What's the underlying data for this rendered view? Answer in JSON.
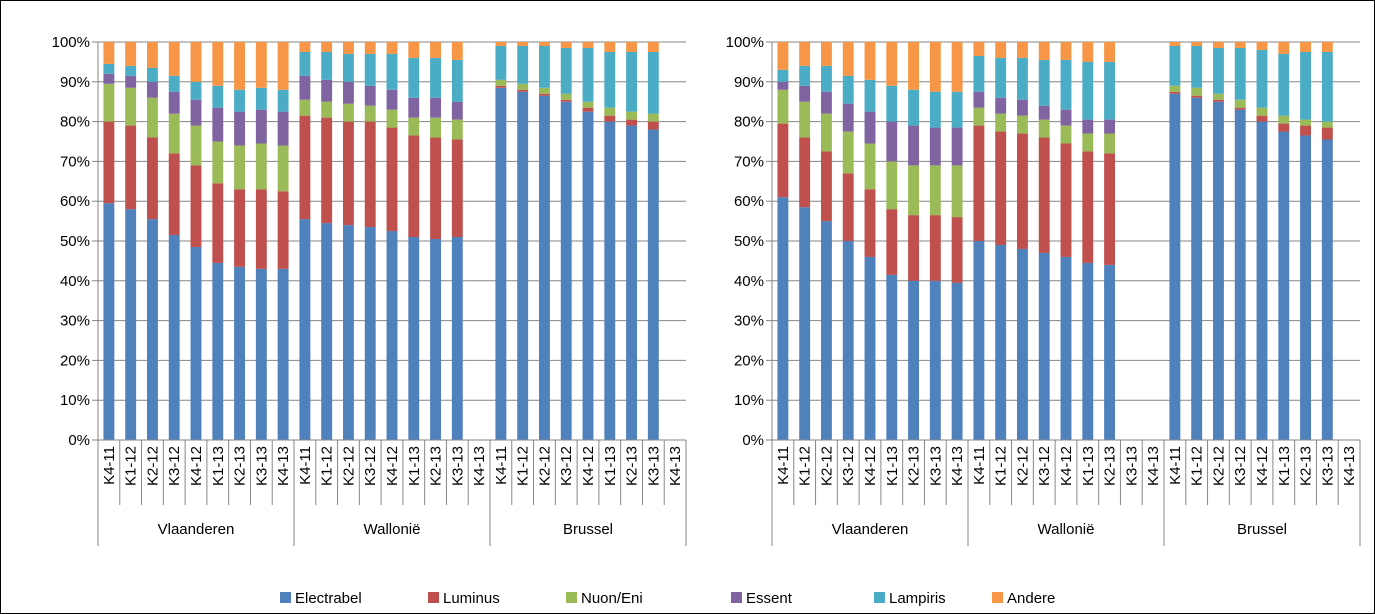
{
  "legend": [
    {
      "name": "Electrabel",
      "color": "#4F81BD"
    },
    {
      "name": "Luminus",
      "color": "#C0504D"
    },
    {
      "name": "Nuon/Eni",
      "color": "#9BBB59"
    },
    {
      "name": "Essent",
      "color": "#8064A2"
    },
    {
      "name": "Lampiris",
      "color": "#4BACC6"
    },
    {
      "name": "Andere",
      "color": "#F79646"
    }
  ],
  "chart_data": [
    {
      "type": "bar",
      "stacked": true,
      "grid": true,
      "ylim": [
        0,
        100
      ],
      "yticks": [
        "0%",
        "10%",
        "20%",
        "30%",
        "40%",
        "50%",
        "60%",
        "70%",
        "80%",
        "90%",
        "100%"
      ],
      "groups": [
        {
          "name": "Vlaanderen",
          "categories": [
            "K4-11",
            "K1-12",
            "K2-12",
            "K3-12",
            "K4-12",
            "K1-13",
            "K2-13",
            "K3-13",
            "K4-13"
          ],
          "series": [
            {
              "name": "Electrabel",
              "values": [
                59.5,
                58,
                55.5,
                51.5,
                48.5,
                44.5,
                43.5,
                43,
                43
              ]
            },
            {
              "name": "Luminus",
              "values": [
                20.5,
                21,
                20.5,
                20.5,
                20.5,
                20,
                19.5,
                20,
                19.5
              ]
            },
            {
              "name": "Nuon/Eni",
              "values": [
                9.5,
                9.5,
                10,
                10,
                10,
                10.5,
                11,
                11.5,
                11.5
              ]
            },
            {
              "name": "Essent",
              "values": [
                2.5,
                3,
                4,
                5.5,
                6.5,
                8.5,
                8.5,
                8.5,
                8.5
              ]
            },
            {
              "name": "Lampiris",
              "values": [
                2.5,
                2.5,
                3.5,
                4,
                4.5,
                5.5,
                5.5,
                5.5,
                5.5
              ]
            },
            {
              "name": "Andere",
              "values": [
                5.5,
                6,
                6.5,
                8.5,
                10,
                11,
                12,
                11.5,
                12
              ]
            }
          ]
        },
        {
          "name": "Wallonië",
          "categories": [
            "K4-11",
            "K1-12",
            "K2-12",
            "K3-12",
            "K4-12",
            "K1-13",
            "K2-13",
            "K3-13",
            "K4-13"
          ],
          "series": [
            {
              "name": "Electrabel",
              "values": [
                55.5,
                54.5,
                54,
                53.5,
                52.5,
                51,
                50.5,
                51,
                0
              ]
            },
            {
              "name": "Luminus",
              "values": [
                26,
                26.5,
                26,
                26.5,
                26,
                25.5,
                25.5,
                24.5,
                0
              ]
            },
            {
              "name": "Nuon/Eni",
              "values": [
                4,
                4,
                4.5,
                4,
                4.5,
                4.5,
                5,
                5,
                0
              ]
            },
            {
              "name": "Essent",
              "values": [
                6,
                5.5,
                5.5,
                5,
                5,
                5,
                5,
                4.5,
                0
              ]
            },
            {
              "name": "Lampiris",
              "values": [
                6,
                7,
                7,
                8,
                9,
                10,
                10,
                10.5,
                0
              ]
            },
            {
              "name": "Andere",
              "values": [
                2.5,
                2.5,
                3,
                3,
                3,
                4,
                4,
                4.5,
                0
              ]
            }
          ]
        },
        {
          "name": "Brussel",
          "categories": [
            "K4-11",
            "K1-12",
            "K2-12",
            "K3-12",
            "K4-12",
            "K1-13",
            "K2-13",
            "K3-13",
            "K4-13"
          ],
          "series": [
            {
              "name": "Electrabel",
              "values": [
                88.5,
                87.5,
                86.5,
                85,
                82.5,
                80,
                79,
                78,
                0
              ]
            },
            {
              "name": "Luminus",
              "values": [
                0.5,
                0.5,
                0.5,
                0.5,
                1,
                1.5,
                1.5,
                2,
                0
              ]
            },
            {
              "name": "Nuon/Eni",
              "values": [
                1.5,
                1.5,
                1.5,
                1.5,
                1.5,
                2,
                2,
                2,
                0
              ]
            },
            {
              "name": "Essent",
              "values": [
                0,
                0,
                0,
                0,
                0,
                0,
                0,
                0,
                0
              ]
            },
            {
              "name": "Lampiris",
              "values": [
                8.5,
                9.5,
                10.5,
                11.5,
                13.5,
                14,
                15,
                15.5,
                0
              ]
            },
            {
              "name": "Andere",
              "values": [
                1,
                1,
                1,
                1.5,
                1.5,
                2.5,
                2.5,
                2.5,
                0
              ]
            }
          ]
        }
      ]
    },
    {
      "type": "bar",
      "stacked": true,
      "grid": true,
      "ylim": [
        0,
        100
      ],
      "yticks": [
        "0%",
        "10%",
        "20%",
        "30%",
        "40%",
        "50%",
        "60%",
        "70%",
        "80%",
        "90%",
        "100%"
      ],
      "groups": [
        {
          "name": "Vlaanderen",
          "categories": [
            "K4-11",
            "K1-12",
            "K2-12",
            "K3-12",
            "K4-12",
            "K1-13",
            "K2-13",
            "K3-13",
            "K4-13"
          ],
          "series": [
            {
              "name": "Electrabel",
              "values": [
                61,
                58.5,
                55,
                50,
                46,
                41.5,
                40,
                40,
                39.5
              ]
            },
            {
              "name": "Luminus",
              "values": [
                18.5,
                17.5,
                17.5,
                17,
                17,
                16.5,
                16.5,
                16.5,
                16.5
              ]
            },
            {
              "name": "Nuon/Eni",
              "values": [
                8.5,
                9,
                9.5,
                10.5,
                11.5,
                12,
                12.5,
                12.5,
                13
              ]
            },
            {
              "name": "Essent",
              "values": [
                2,
                4,
                5.5,
                7,
                8,
                10,
                10,
                9.5,
                9.5
              ]
            },
            {
              "name": "Lampiris",
              "values": [
                3,
                5,
                6.5,
                7,
                8,
                9,
                9,
                9,
                9
              ]
            },
            {
              "name": "Andere",
              "values": [
                7,
                6,
                6,
                8.5,
                9.5,
                11,
                12,
                12.5,
                12.5
              ]
            }
          ]
        },
        {
          "name": "Wallonië",
          "categories": [
            "K4-11",
            "K1-12",
            "K2-12",
            "K3-12",
            "K4-12",
            "K1-13",
            "K2-13",
            "K3-13",
            "K4-13"
          ],
          "series": [
            {
              "name": "Electrabel",
              "values": [
                50,
                49,
                48,
                47,
                46,
                44.5,
                44,
                0,
                0
              ]
            },
            {
              "name": "Luminus",
              "values": [
                29,
                28.5,
                29,
                29,
                28.5,
                28,
                28,
                0,
                0
              ]
            },
            {
              "name": "Nuon/Eni",
              "values": [
                4.5,
                4.5,
                4.5,
                4.5,
                4.5,
                4.5,
                5,
                0,
                0
              ]
            },
            {
              "name": "Essent",
              "values": [
                4,
                4,
                4,
                3.5,
                4,
                3.5,
                3.5,
                0,
                0
              ]
            },
            {
              "name": "Lampiris",
              "values": [
                9,
                10,
                10.5,
                11.5,
                12.5,
                14.5,
                14.5,
                0,
                0
              ]
            },
            {
              "name": "Andere",
              "values": [
                3.5,
                4,
                4,
                4.5,
                4.5,
                5,
                5,
                0,
                0
              ]
            }
          ]
        },
        {
          "name": "Brussel",
          "categories": [
            "K4-11",
            "K1-12",
            "K2-12",
            "K3-12",
            "K4-12",
            "K1-13",
            "K2-13",
            "K3-13",
            "K4-13"
          ],
          "series": [
            {
              "name": "Electrabel",
              "values": [
                87,
                86,
                85,
                83,
                80,
                77.5,
                76.5,
                75.5,
                0
              ]
            },
            {
              "name": "Luminus",
              "values": [
                0.5,
                0.5,
                0.5,
                0.5,
                1.5,
                2,
                2.5,
                3,
                0
              ]
            },
            {
              "name": "Nuon/Eni",
              "values": [
                1.5,
                2,
                1.5,
                2,
                2,
                2,
                1.5,
                1.5,
                0
              ]
            },
            {
              "name": "Essent",
              "values": [
                0,
                0,
                0,
                0,
                0,
                0,
                0,
                0,
                0
              ]
            },
            {
              "name": "Lampiris",
              "values": [
                10,
                10.5,
                11.5,
                13,
                14.5,
                15.5,
                17,
                17.5,
                0
              ]
            },
            {
              "name": "Andere",
              "values": [
                1,
                1,
                1.5,
                1.5,
                2,
                3,
                2.5,
                2.5,
                0
              ]
            }
          ]
        }
      ]
    }
  ]
}
